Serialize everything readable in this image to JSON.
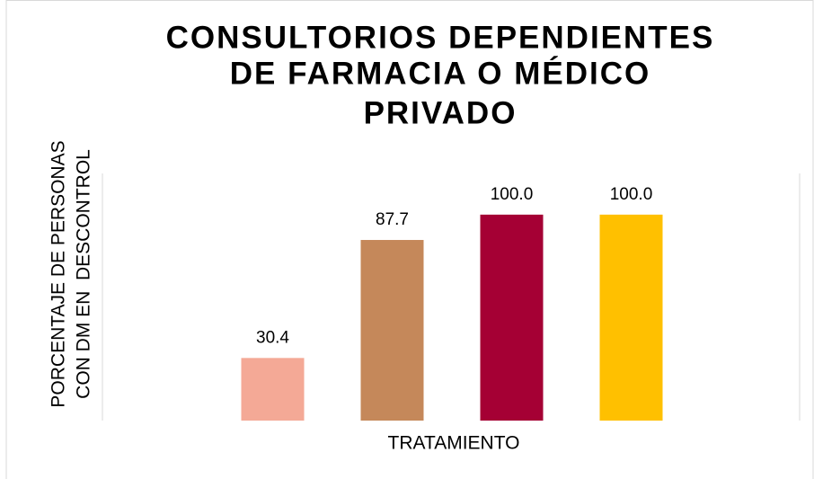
{
  "chart_data": {
    "type": "bar",
    "title": [
      "CONSULTORIOS DEPENDIENTES",
      "DE FARMACIA O MÉDICO",
      "PRIVADO"
    ],
    "ylabel": [
      "PORCENTAJE DE PERSONAS",
      "CON DM EN  DESCONTROL"
    ],
    "xlabel": "TRATAMIENTO",
    "categories": [
      null,
      null,
      null,
      null
    ],
    "values": [
      30.4,
      87.7,
      100,
      100
    ],
    "value_labels": [
      "30.4",
      "87.7",
      "100.0",
      "100.0"
    ],
    "colors": [
      "#f4a996",
      "#c5885a",
      "#a50034",
      "#ffc000"
    ],
    "ylim": [
      0,
      120
    ]
  }
}
